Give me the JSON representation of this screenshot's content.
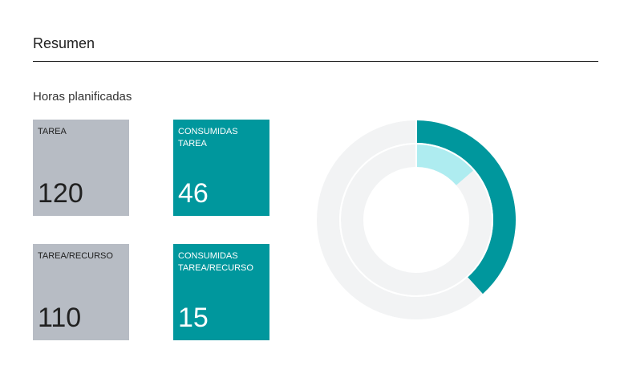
{
  "section": {
    "title": "Resumen"
  },
  "group": {
    "title": "Horas planificadas"
  },
  "tiles": [
    {
      "label": "TAREA",
      "value": "120",
      "style": "gray"
    },
    {
      "label": "CONSUMIDAS TAREA",
      "value": "46",
      "style": "teal"
    },
    {
      "label": "TAREA/RECURSO",
      "value": "110",
      "style": "gray"
    },
    {
      "label": "CONSUMIDAS TAREA/RECURSO",
      "value": "15",
      "style": "teal"
    }
  ],
  "chart_data": {
    "type": "donut",
    "rings": [
      {
        "total": 120,
        "value": 46,
        "color": "#00979d",
        "track_color": "#f2f3f4"
      },
      {
        "total": 110,
        "value": 15,
        "color": "#aeecf0",
        "track_color": "#f2f3f4"
      }
    ]
  },
  "colors": {
    "tile_gray": "#b7bcc4",
    "tile_teal": "#00979d",
    "ring_light": "#aeecf0",
    "track": "#f2f3f4"
  }
}
